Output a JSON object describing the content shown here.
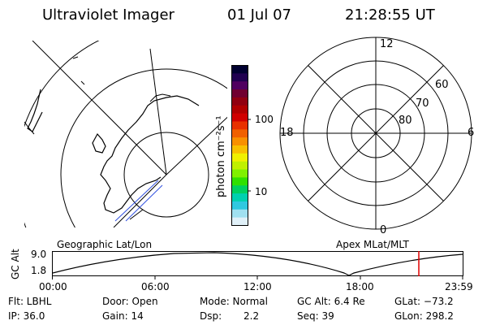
{
  "header": {
    "title": "Ultraviolet Imager",
    "date": "01 Jul 07",
    "time": "21:28:55 UT"
  },
  "colorbar": {
    "unit_label": "photon cm⁻²s⁻¹",
    "tick_100": "100",
    "tick_10": "10",
    "colors": [
      "#000030",
      "#200050",
      "#500060",
      "#700030",
      "#900010",
      "#b00000",
      "#d00000",
      "#e83000",
      "#f06000",
      "#f89000",
      "#f8c000",
      "#f0f000",
      "#c0f000",
      "#80f000",
      "#30e000",
      "#00d060",
      "#00d0b0",
      "#30c8e0",
      "#a0e0f0",
      "#e0f0f8"
    ]
  },
  "polar_plot": {
    "label_top": "12",
    "label_left": "18",
    "label_right": "6",
    "label_bottom": "0",
    "lat_60": "60",
    "lat_70": "70",
    "lat_80": "80"
  },
  "timeline": {
    "left_label": "Geographic Lat/Lon",
    "right_label": "Apex MLat/MLT",
    "axis_title": "GC Alt",
    "y_top": "9.0",
    "y_bottom": "1.8",
    "x_ticks": [
      "00:00",
      "06:00",
      "12:00",
      "18:00",
      "23:59"
    ],
    "current_time_marker_color": "#e00000"
  },
  "info": {
    "flt": "Flt: LBHL",
    "ip": "IP: 36.0",
    "door": "Door: Open",
    "gain": "Gain: 14",
    "mode": "Mode: Normal",
    "dsp_label": "Dsp:",
    "dsp_value": "2.2",
    "gc_alt": "GC Alt: 6.4 Re",
    "seq": "Seq: 39",
    "glat": "GLat: −73.2",
    "glon": "GLon: 298.2"
  }
}
